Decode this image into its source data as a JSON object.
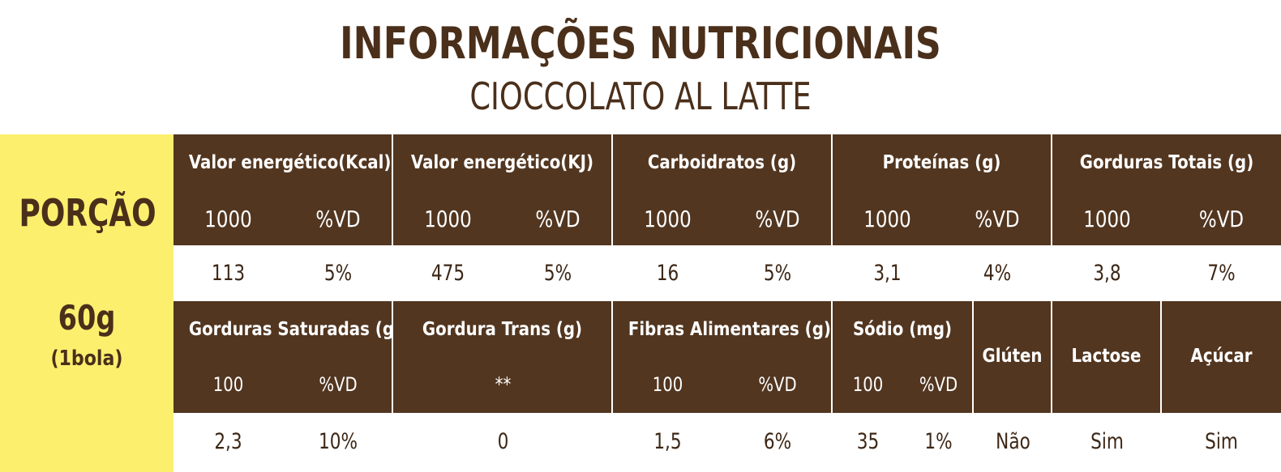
{
  "title": "INFORMAÇÕES NUTRICIONAIS",
  "subtitle": "CIOCCOLATO AL LATTE",
  "portion": {
    "label": "PORÇÃO",
    "amount": "60g",
    "unit": "(1bola)"
  },
  "colors": {
    "header_bg": "#523620",
    "portion_bg": "#fcef6e",
    "text_brown": "#4a2f1a"
  },
  "row1": [
    {
      "name": "Valor energético(Kcal)",
      "sub_left": "1000",
      "sub_right": "%VD",
      "value_left": "113",
      "value_right": "5%"
    },
    {
      "name": "Valor energético(KJ)",
      "sub_left": "1000",
      "sub_right": "%VD",
      "value_left": "475",
      "value_right": "5%"
    },
    {
      "name": "Carboidratos (g)",
      "sub_left": "1000",
      "sub_right": "%VD",
      "value_left": "16",
      "value_right": "5%"
    },
    {
      "name": "Proteínas (g)",
      "sub_left": "1000",
      "sub_right": "%VD",
      "value_left": "3,1",
      "value_right": "4%"
    },
    {
      "name": "Gorduras Totais (g)",
      "sub_left": "1000",
      "sub_right": "%VD",
      "value_left": "3,8",
      "value_right": "7%"
    }
  ],
  "row2": [
    {
      "name": "Gorduras Saturadas (g)",
      "sub_left": "100",
      "sub_right": "%VD",
      "value_left": "2,3",
      "value_right": "10%"
    },
    {
      "name": "Gordura Trans (g)",
      "sub_center": "**",
      "value_center": "0"
    },
    {
      "name": "Fibras Alimentares (g)",
      "sub_left": "100",
      "sub_right": "%VD",
      "value_left": "1,5",
      "value_right": "6%"
    },
    {
      "name": "Sódio (mg)",
      "sub_left": "100",
      "sub_right": "%VD",
      "value_left": "35",
      "value_right": "1%"
    },
    {
      "name": "Glúten",
      "value_center": "Não"
    },
    {
      "name": "Lactose",
      "value_center": "Sim"
    },
    {
      "name": "Açúcar",
      "value_center": "Sim"
    }
  ]
}
